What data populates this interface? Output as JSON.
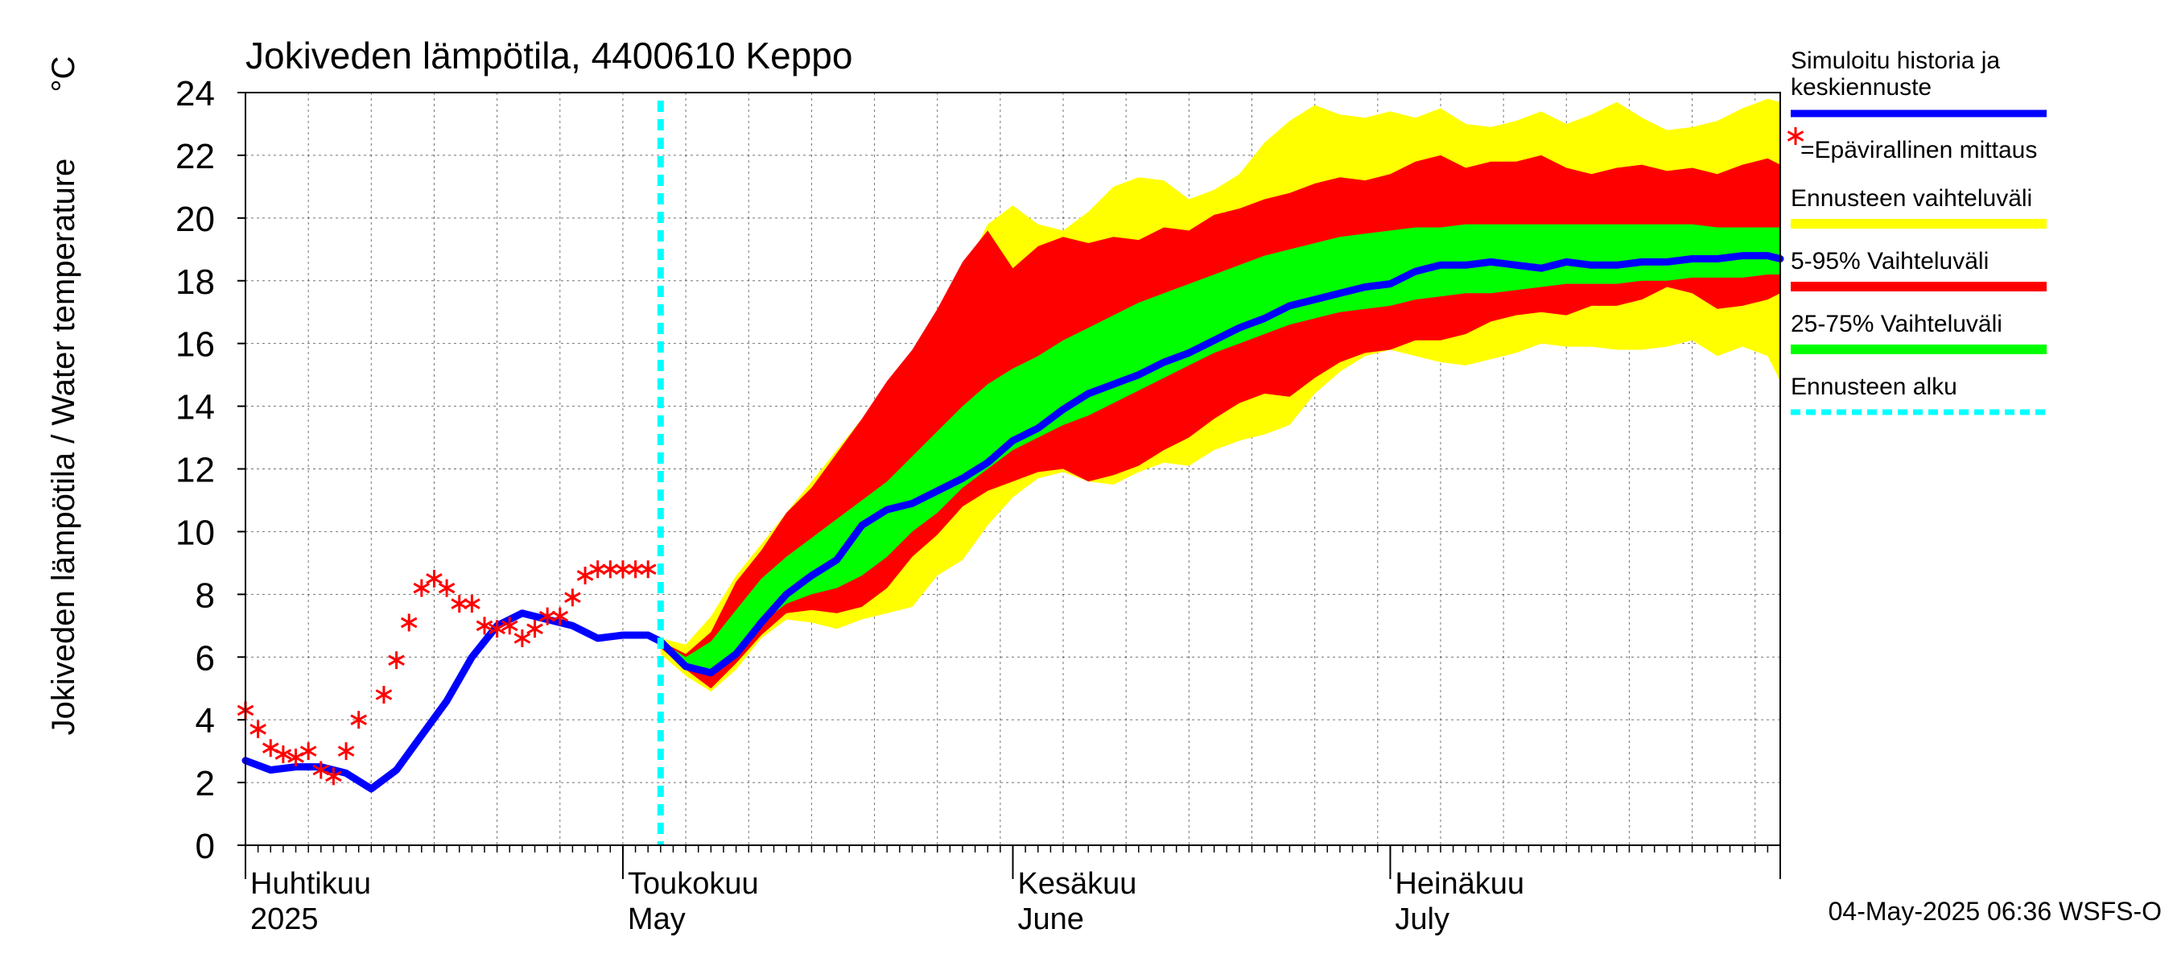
{
  "chart_data": {
    "type": "area",
    "title": "Jokiveden lämpötila, 4400610 Keppo",
    "ylabel": "Jokiveden lämpötila / Water temperature",
    "yunit": "°C",
    "ylim": [
      0,
      24
    ],
    "yticks": [
      0,
      2,
      4,
      6,
      8,
      10,
      12,
      14,
      16,
      18,
      20,
      22,
      24
    ],
    "xlim": [
      "2025-04-01",
      "2025-08-01"
    ],
    "grid": true,
    "month_labels": [
      {
        "date": "2025-04-01",
        "fi": "Huhtikuu",
        "en": "2025"
      },
      {
        "date": "2025-05-01",
        "fi": "Toukokuu",
        "en": "May"
      },
      {
        "date": "2025-06-01",
        "fi": "Kesäkuu",
        "en": "June"
      },
      {
        "date": "2025-07-01",
        "fi": "Heinäkuu",
        "en": "July"
      }
    ],
    "forecast_start": "2025-05-04",
    "timestamp": "04-May-2025 06:36 WSFS-O",
    "legend": [
      {
        "label": "Simuloitu historia ja keskiennuste",
        "color": "#0000ff",
        "kind": "line"
      },
      {
        "label": "=Epävirallinen mittaus",
        "color": "#ff0000",
        "kind": "marker"
      },
      {
        "label": "Ennusteen vaihteluväli",
        "color": "#ffff00",
        "kind": "band"
      },
      {
        "label": "5-95% Vaihteluväli",
        "color": "#ff0000",
        "kind": "band"
      },
      {
        "label": "25-75% Vaihteluväli",
        "color": "#00ff00",
        "kind": "band"
      },
      {
        "label": "Ennusteen alku",
        "color": "#00ffff",
        "kind": "dashed"
      }
    ],
    "band_x": [
      "2025-05-04",
      "2025-05-06",
      "2025-05-08",
      "2025-05-10",
      "2025-05-12",
      "2025-05-14",
      "2025-05-16",
      "2025-05-18",
      "2025-05-20",
      "2025-05-22",
      "2025-05-24",
      "2025-05-26",
      "2025-05-28",
      "2025-05-30",
      "2025-06-01",
      "2025-06-03",
      "2025-06-05",
      "2025-06-07",
      "2025-06-09",
      "2025-06-11",
      "2025-06-13",
      "2025-06-15",
      "2025-06-17",
      "2025-06-19",
      "2025-06-21",
      "2025-06-23",
      "2025-06-25",
      "2025-06-27",
      "2025-06-29",
      "2025-07-01",
      "2025-07-03",
      "2025-07-05",
      "2025-07-07",
      "2025-07-09",
      "2025-07-11",
      "2025-07-13",
      "2025-07-15",
      "2025-07-17",
      "2025-07-19",
      "2025-07-21",
      "2025-07-23",
      "2025-07-25",
      "2025-07-27",
      "2025-07-29",
      "2025-07-31",
      "2025-08-01"
    ],
    "series": [
      {
        "name": "Ennusteen vaihteluväli",
        "low": [
          6.1,
          5.4,
          4.9,
          5.6,
          6.6,
          7.2,
          7.1,
          6.9,
          7.2,
          7.4,
          7.6,
          8.6,
          9.1,
          10.2,
          11.1,
          11.7,
          11.9,
          11.6,
          11.5,
          11.9,
          12.2,
          12.1,
          12.6,
          12.9,
          13.1,
          13.4,
          14.4,
          15.1,
          15.6,
          15.8,
          15.6,
          15.4,
          15.3,
          15.5,
          15.7,
          16.0,
          15.9,
          15.9,
          15.8,
          15.8,
          15.9,
          16.1,
          15.6,
          15.9,
          15.6,
          14.8
        ],
        "high": [
          6.6,
          6.4,
          7.3,
          8.6,
          9.6,
          10.6,
          11.6,
          12.6,
          13.6,
          14.6,
          15.6,
          16.6,
          18.2,
          19.8,
          20.4,
          19.8,
          19.6,
          20.2,
          21.0,
          21.3,
          21.2,
          20.6,
          20.9,
          21.4,
          22.4,
          23.1,
          23.6,
          23.3,
          23.2,
          23.4,
          23.2,
          23.5,
          23.0,
          22.9,
          23.1,
          23.4,
          23.0,
          23.3,
          23.7,
          23.2,
          22.8,
          22.9,
          23.1,
          23.5,
          23.8,
          23.7
        ]
      },
      {
        "name": "5-95% Vaihteluväli",
        "low": [
          6.3,
          5.6,
          5.0,
          5.8,
          6.7,
          7.4,
          7.5,
          7.4,
          7.6,
          8.2,
          9.2,
          9.9,
          10.8,
          11.3,
          11.6,
          11.9,
          12.0,
          11.6,
          11.8,
          12.1,
          12.6,
          13.0,
          13.6,
          14.1,
          14.4,
          14.3,
          14.9,
          15.4,
          15.7,
          15.8,
          16.1,
          16.1,
          16.3,
          16.7,
          16.9,
          17.0,
          16.9,
          17.2,
          17.2,
          17.4,
          17.8,
          17.6,
          17.1,
          17.2,
          17.4,
          17.6
        ],
        "high": [
          6.5,
          6.1,
          6.8,
          8.4,
          9.4,
          10.6,
          11.4,
          12.5,
          13.6,
          14.8,
          15.8,
          17.1,
          18.6,
          19.6,
          18.4,
          19.1,
          19.4,
          19.2,
          19.4,
          19.3,
          19.7,
          19.6,
          20.1,
          20.3,
          20.6,
          20.8,
          21.1,
          21.3,
          21.2,
          21.4,
          21.8,
          22.0,
          21.6,
          21.8,
          21.8,
          22.0,
          21.6,
          21.4,
          21.6,
          21.7,
          21.5,
          21.6,
          21.4,
          21.7,
          21.9,
          21.7
        ]
      },
      {
        "name": "25-75% Vaihteluväli",
        "low": [
          6.4,
          5.8,
          5.6,
          6.2,
          7.1,
          7.7,
          8.0,
          8.2,
          8.6,
          9.2,
          10.0,
          10.6,
          11.4,
          12.0,
          12.6,
          13.0,
          13.4,
          13.7,
          14.1,
          14.5,
          14.9,
          15.3,
          15.7,
          16.0,
          16.3,
          16.6,
          16.8,
          17.0,
          17.1,
          17.2,
          17.4,
          17.5,
          17.6,
          17.6,
          17.7,
          17.8,
          17.9,
          17.9,
          17.9,
          18.0,
          18.0,
          18.1,
          18.1,
          18.1,
          18.2,
          18.2
        ],
        "high": [
          6.5,
          6.0,
          6.5,
          7.5,
          8.5,
          9.2,
          9.8,
          10.4,
          11.0,
          11.6,
          12.4,
          13.2,
          14.0,
          14.7,
          15.2,
          15.6,
          16.1,
          16.5,
          16.9,
          17.3,
          17.6,
          17.9,
          18.2,
          18.5,
          18.8,
          19.0,
          19.2,
          19.4,
          19.5,
          19.6,
          19.7,
          19.7,
          19.8,
          19.8,
          19.8,
          19.8,
          19.8,
          19.8,
          19.8,
          19.8,
          19.8,
          19.8,
          19.7,
          19.7,
          19.7,
          19.7
        ]
      }
    ],
    "simulated": {
      "name": "Simuloitu historia ja keskiennuste",
      "x": [
        "2025-04-01",
        "2025-04-03",
        "2025-04-05",
        "2025-04-07",
        "2025-04-09",
        "2025-04-11",
        "2025-04-13",
        "2025-04-15",
        "2025-04-17",
        "2025-04-19",
        "2025-04-21",
        "2025-04-23",
        "2025-04-25",
        "2025-04-27",
        "2025-04-29",
        "2025-05-01",
        "2025-05-03",
        "2025-05-04",
        "2025-05-06",
        "2025-05-08",
        "2025-05-10",
        "2025-05-12",
        "2025-05-14",
        "2025-05-16",
        "2025-05-18",
        "2025-05-20",
        "2025-05-22",
        "2025-05-24",
        "2025-05-26",
        "2025-05-28",
        "2025-05-30",
        "2025-06-01",
        "2025-06-03",
        "2025-06-05",
        "2025-06-07",
        "2025-06-09",
        "2025-06-11",
        "2025-06-13",
        "2025-06-15",
        "2025-06-17",
        "2025-06-19",
        "2025-06-21",
        "2025-06-23",
        "2025-06-25",
        "2025-06-27",
        "2025-06-29",
        "2025-07-01",
        "2025-07-03",
        "2025-07-05",
        "2025-07-07",
        "2025-07-09",
        "2025-07-11",
        "2025-07-13",
        "2025-07-15",
        "2025-07-17",
        "2025-07-19",
        "2025-07-21",
        "2025-07-23",
        "2025-07-25",
        "2025-07-27",
        "2025-07-29",
        "2025-07-31",
        "2025-08-01"
      ],
      "y": [
        2.7,
        2.4,
        2.5,
        2.5,
        2.3,
        1.8,
        2.4,
        3.5,
        4.6,
        6.0,
        7.0,
        7.4,
        7.2,
        7.0,
        6.6,
        6.7,
        6.7,
        6.5,
        5.7,
        5.5,
        6.1,
        7.1,
        8.0,
        8.6,
        9.1,
        10.2,
        10.7,
        10.9,
        11.3,
        11.7,
        12.2,
        12.9,
        13.3,
        13.9,
        14.4,
        14.7,
        15.0,
        15.4,
        15.7,
        16.1,
        16.5,
        16.8,
        17.2,
        17.4,
        17.6,
        17.8,
        17.9,
        18.3,
        18.5,
        18.5,
        18.6,
        18.5,
        18.4,
        18.6,
        18.5,
        18.5,
        18.6,
        18.6,
        18.7,
        18.7,
        18.8,
        18.8,
        18.7
      ]
    },
    "measurements": {
      "name": "Epävirallinen mittaus",
      "x": [
        "2025-04-01",
        "2025-04-02",
        "2025-04-03",
        "2025-04-04",
        "2025-04-05",
        "2025-04-06",
        "2025-04-07",
        "2025-04-08",
        "2025-04-09",
        "2025-04-10",
        "2025-04-12",
        "2025-04-13",
        "2025-04-14",
        "2025-04-15",
        "2025-04-16",
        "2025-04-17",
        "2025-04-18",
        "2025-04-19",
        "2025-04-20",
        "2025-04-21",
        "2025-04-22",
        "2025-04-23",
        "2025-04-24",
        "2025-04-25",
        "2025-04-26",
        "2025-04-27",
        "2025-04-28",
        "2025-04-29",
        "2025-04-30",
        "2025-05-01",
        "2025-05-02",
        "2025-05-03"
      ],
      "y": [
        4.3,
        3.7,
        3.1,
        2.9,
        2.8,
        3.0,
        2.4,
        2.2,
        3.0,
        4.0,
        4.8,
        5.9,
        7.1,
        8.2,
        8.5,
        8.2,
        7.7,
        7.7,
        7.0,
        6.9,
        7.0,
        6.6,
        6.9,
        7.3,
        7.3,
        7.9,
        8.6,
        8.8,
        8.8,
        8.8,
        8.8,
        8.8
      ]
    }
  }
}
